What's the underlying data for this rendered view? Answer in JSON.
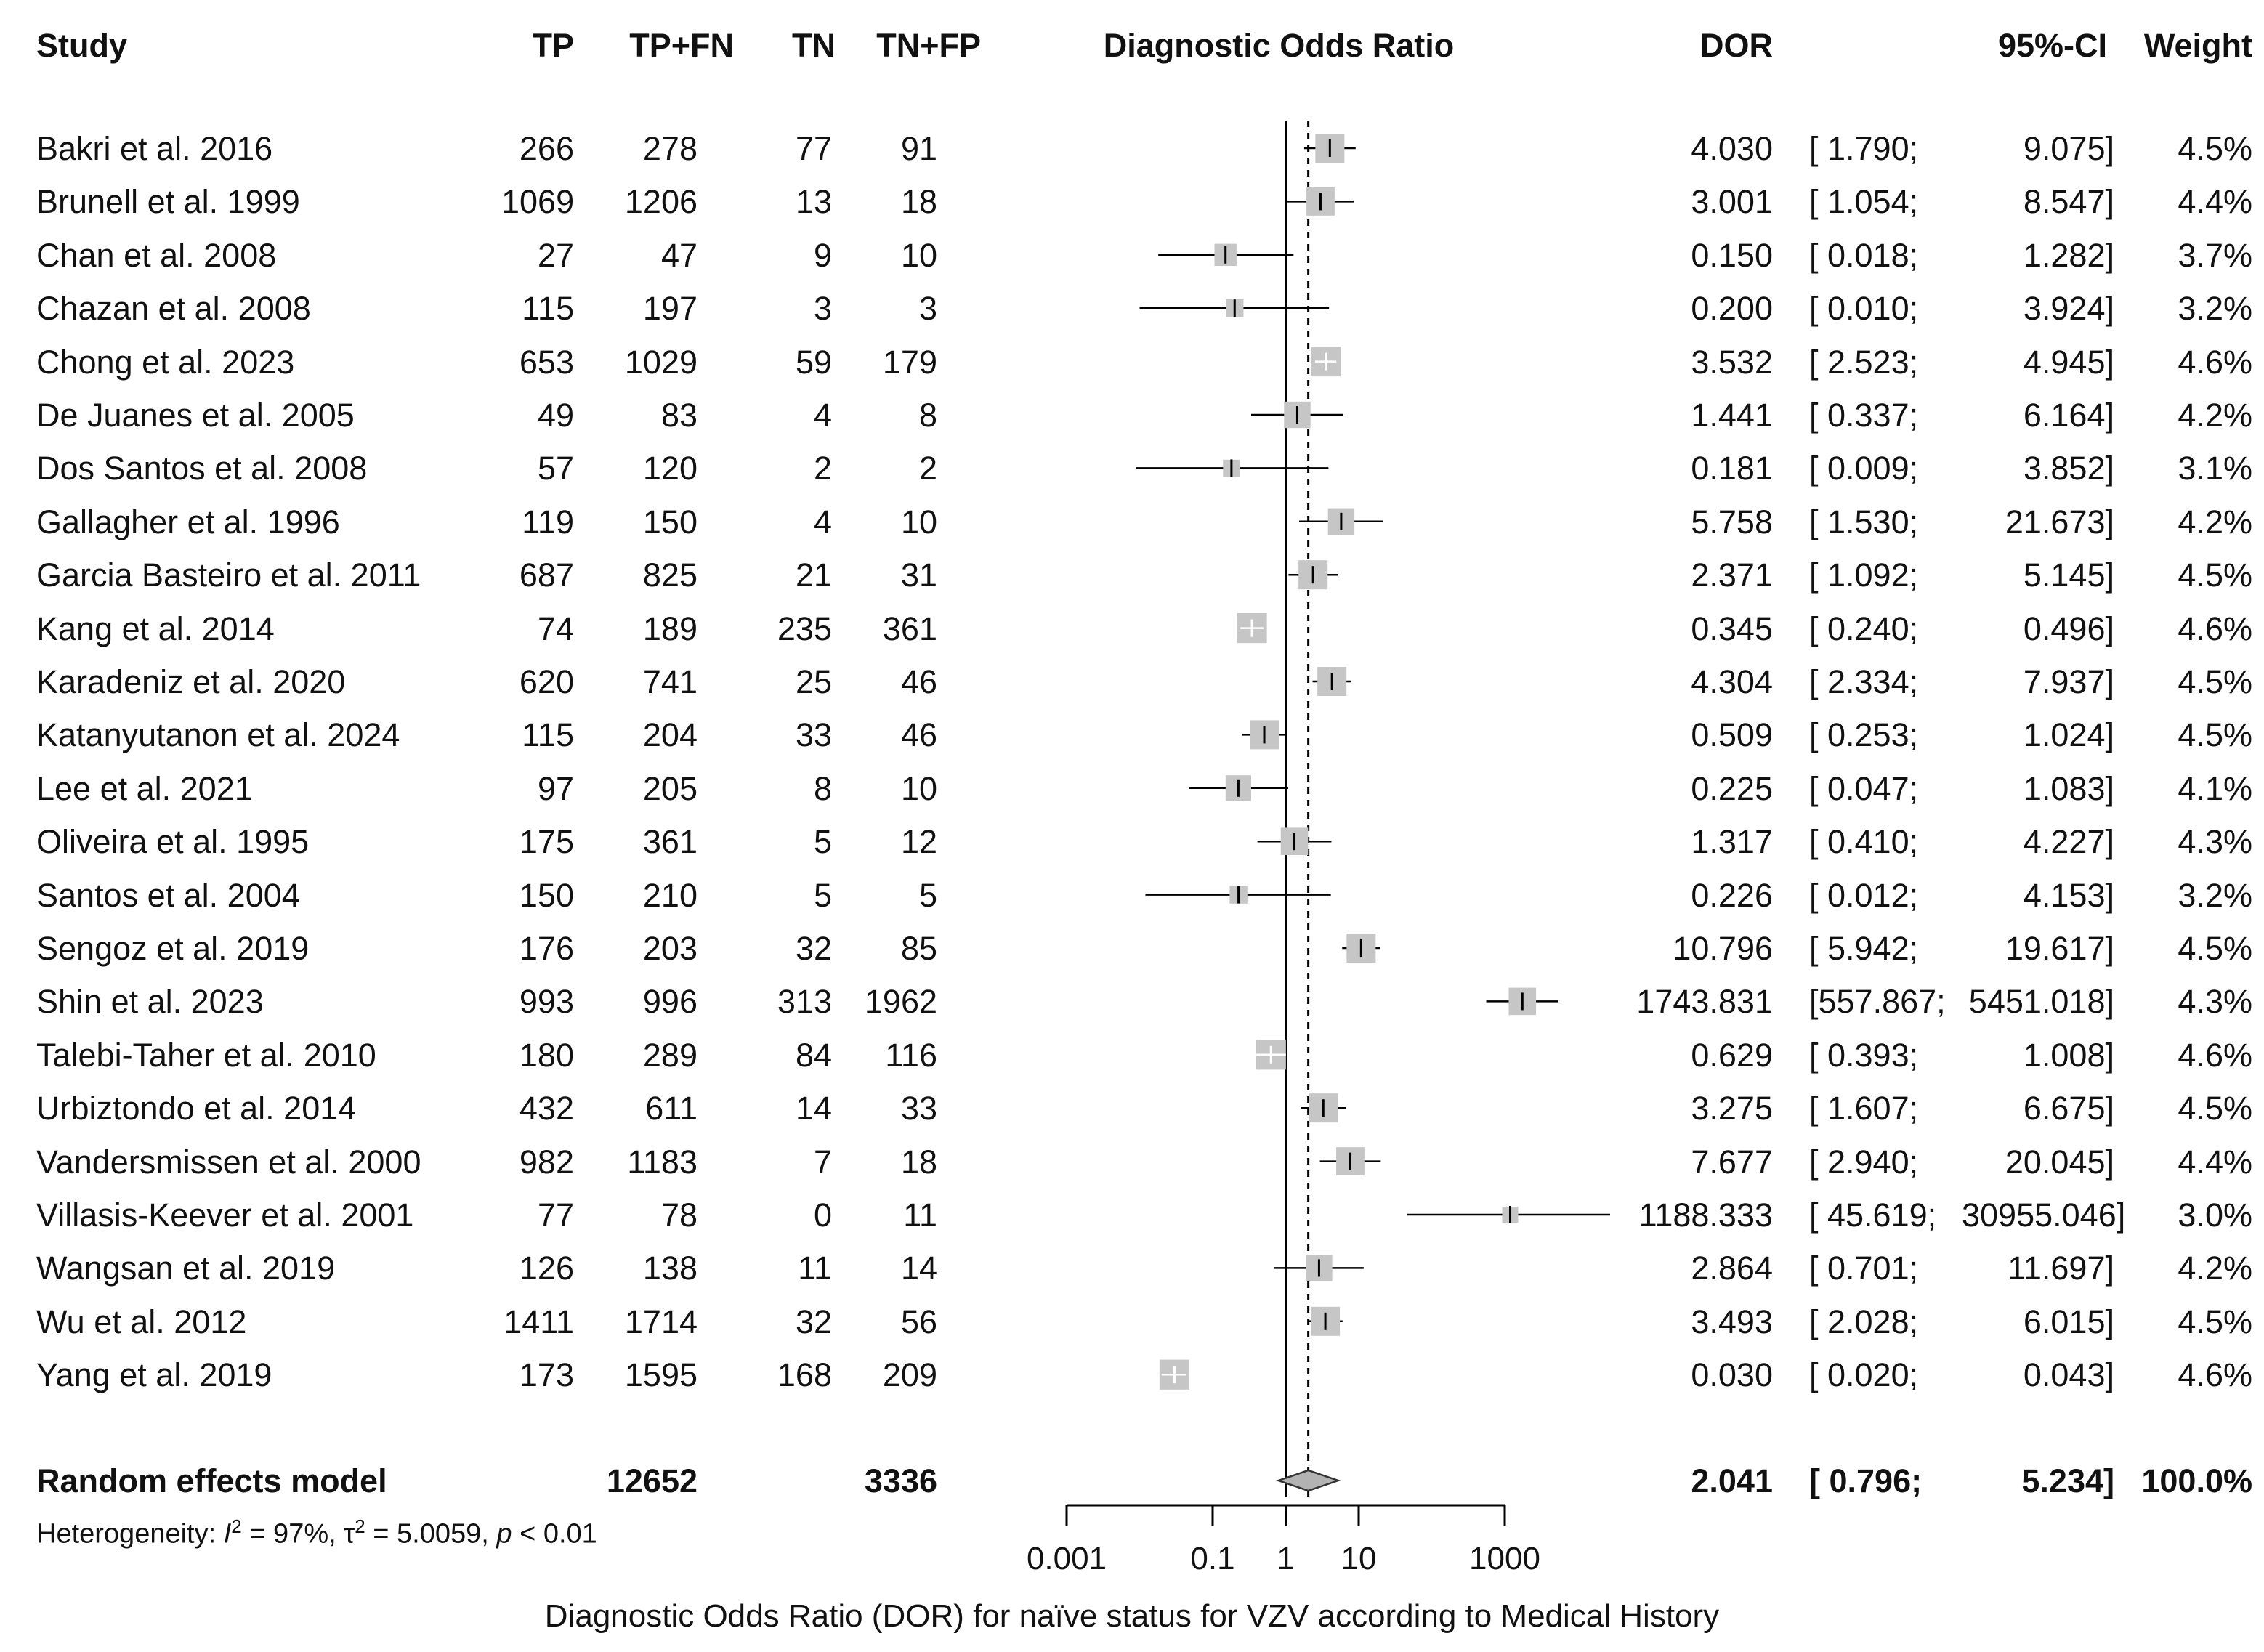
{
  "headers": {
    "study": "Study",
    "tp": "TP",
    "tpfn": "TP+FN",
    "tn": "TN",
    "tnfp": "TN+FP",
    "plot": "Diagnostic Odds Ratio",
    "dor": "DOR",
    "ci": "95%-CI",
    "weight": "Weight"
  },
  "chart_data": {
    "type": "forest",
    "title": "Diagnostic Odds Ratio",
    "xlabel": "Diagnostic Odds Ratio (DOR) for naïve status for VZV according to Medical History",
    "xscale": "log10",
    "xlim": [
      0.001,
      1000
    ],
    "xticks": [
      0.001,
      0.1,
      1,
      10,
      1000
    ],
    "xtick_labels": [
      "0.001",
      "0.1",
      "1",
      "10",
      "1000"
    ],
    "reference_line": 1,
    "pooled_line": 2.041,
    "studies": [
      {
        "study": "Bakri et al. 2016",
        "tp": "266",
        "tpfn": "278",
        "tn": "77",
        "tnfp": "91",
        "dor": 4.03,
        "lo": 1.79,
        "hi": 9.075,
        "dor_text": "4.030",
        "ci_lo_text": "[ 1.790;",
        "ci_hi_text": "9.075]",
        "weight_text": "4.5%",
        "weight": 4.5
      },
      {
        "study": "Brunell et al. 1999",
        "tp": "1069",
        "tpfn": "1206",
        "tn": "13",
        "tnfp": "18",
        "dor": 3.001,
        "lo": 1.054,
        "hi": 8.547,
        "dor_text": "3.001",
        "ci_lo_text": "[ 1.054;",
        "ci_hi_text": "8.547]",
        "weight_text": "4.4%",
        "weight": 4.4
      },
      {
        "study": "Chan et al. 2008",
        "tp": "27",
        "tpfn": "47",
        "tn": "9",
        "tnfp": "10",
        "dor": 0.15,
        "lo": 0.018,
        "hi": 1.282,
        "dor_text": "0.150",
        "ci_lo_text": "[ 0.018;",
        "ci_hi_text": "1.282]",
        "weight_text": "3.7%",
        "weight": 3.7
      },
      {
        "study": "Chazan et al. 2008",
        "tp": "115",
        "tpfn": "197",
        "tn": "3",
        "tnfp": "3",
        "dor": 0.2,
        "lo": 0.01,
        "hi": 3.924,
        "dor_text": "0.200",
        "ci_lo_text": "[ 0.010;",
        "ci_hi_text": "3.924]",
        "weight_text": "3.2%",
        "weight": 3.2
      },
      {
        "study": "Chong et al. 2023",
        "tp": "653",
        "tpfn": "1029",
        "tn": "59",
        "tnfp": "179",
        "dor": 3.532,
        "lo": 2.523,
        "hi": 4.945,
        "dor_text": "3.532",
        "ci_lo_text": "[ 2.523;",
        "ci_hi_text": "4.945]",
        "weight_text": "4.6%",
        "weight": 4.6
      },
      {
        "study": "De Juanes et al. 2005",
        "tp": "49",
        "tpfn": "83",
        "tn": "4",
        "tnfp": "8",
        "dor": 1.441,
        "lo": 0.337,
        "hi": 6.164,
        "dor_text": "1.441",
        "ci_lo_text": "[ 0.337;",
        "ci_hi_text": "6.164]",
        "weight_text": "4.2%",
        "weight": 4.2
      },
      {
        "study": "Dos Santos et al. 2008",
        "tp": "57",
        "tpfn": "120",
        "tn": "2",
        "tnfp": "2",
        "dor": 0.181,
        "lo": 0.009,
        "hi": 3.852,
        "dor_text": "0.181",
        "ci_lo_text": "[ 0.009;",
        "ci_hi_text": "3.852]",
        "weight_text": "3.1%",
        "weight": 3.1
      },
      {
        "study": "Gallagher et al. 1996",
        "tp": "119",
        "tpfn": "150",
        "tn": "4",
        "tnfp": "10",
        "dor": 5.758,
        "lo": 1.53,
        "hi": 21.673,
        "dor_text": "5.758",
        "ci_lo_text": "[ 1.530;",
        "ci_hi_text": "21.673]",
        "weight_text": "4.2%",
        "weight": 4.2
      },
      {
        "study": "Garcia Basteiro et al. 2011",
        "tp": "687",
        "tpfn": "825",
        "tn": "21",
        "tnfp": "31",
        "dor": 2.371,
        "lo": 1.092,
        "hi": 5.145,
        "dor_text": "2.371",
        "ci_lo_text": "[ 1.092;",
        "ci_hi_text": "5.145]",
        "weight_text": "4.5%",
        "weight": 4.5
      },
      {
        "study": "Kang et al. 2014",
        "tp": "74",
        "tpfn": "189",
        "tn": "235",
        "tnfp": "361",
        "dor": 0.345,
        "lo": 0.24,
        "hi": 0.496,
        "dor_text": "0.345",
        "ci_lo_text": "[ 0.240;",
        "ci_hi_text": "0.496]",
        "weight_text": "4.6%",
        "weight": 4.6
      },
      {
        "study": "Karadeniz et al. 2020",
        "tp": "620",
        "tpfn": "741",
        "tn": "25",
        "tnfp": "46",
        "dor": 4.304,
        "lo": 2.334,
        "hi": 7.937,
        "dor_text": "4.304",
        "ci_lo_text": "[ 2.334;",
        "ci_hi_text": "7.937]",
        "weight_text": "4.5%",
        "weight": 4.5
      },
      {
        "study": "Katanyutanon et al. 2024",
        "tp": "115",
        "tpfn": "204",
        "tn": "33",
        "tnfp": "46",
        "dor": 0.509,
        "lo": 0.253,
        "hi": 1.024,
        "dor_text": "0.509",
        "ci_lo_text": "[ 0.253;",
        "ci_hi_text": "1.024]",
        "weight_text": "4.5%",
        "weight": 4.5
      },
      {
        "study": "Lee et al. 2021",
        "tp": "97",
        "tpfn": "205",
        "tn": "8",
        "tnfp": "10",
        "dor": 0.225,
        "lo": 0.047,
        "hi": 1.083,
        "dor_text": "0.225",
        "ci_lo_text": "[ 0.047;",
        "ci_hi_text": "1.083]",
        "weight_text": "4.1%",
        "weight": 4.1
      },
      {
        "study": "Oliveira et al. 1995",
        "tp": "175",
        "tpfn": "361",
        "tn": "5",
        "tnfp": "12",
        "dor": 1.317,
        "lo": 0.41,
        "hi": 4.227,
        "dor_text": "1.317",
        "ci_lo_text": "[ 0.410;",
        "ci_hi_text": "4.227]",
        "weight_text": "4.3%",
        "weight": 4.3
      },
      {
        "study": "Santos et al. 2004",
        "tp": "150",
        "tpfn": "210",
        "tn": "5",
        "tnfp": "5",
        "dor": 0.226,
        "lo": 0.012,
        "hi": 4.153,
        "dor_text": "0.226",
        "ci_lo_text": "[ 0.012;",
        "ci_hi_text": "4.153]",
        "weight_text": "3.2%",
        "weight": 3.2
      },
      {
        "study": "Sengoz et al. 2019",
        "tp": "176",
        "tpfn": "203",
        "tn": "32",
        "tnfp": "85",
        "dor": 10.796,
        "lo": 5.942,
        "hi": 19.617,
        "dor_text": "10.796",
        "ci_lo_text": "[ 5.942;",
        "ci_hi_text": "19.617]",
        "weight_text": "4.5%",
        "weight": 4.5
      },
      {
        "study": "Shin et al. 2023",
        "tp": "993",
        "tpfn": "996",
        "tn": "313",
        "tnfp": "1962",
        "dor": 1743.831,
        "lo": 557.867,
        "hi": 5451.018,
        "dor_text": "1743.831",
        "ci_lo_text": "[557.867;",
        "ci_hi_text": "5451.018]",
        "weight_text": "4.3%",
        "weight": 4.3
      },
      {
        "study": "Talebi-Taher et al. 2010",
        "tp": "180",
        "tpfn": "289",
        "tn": "84",
        "tnfp": "116",
        "dor": 0.629,
        "lo": 0.393,
        "hi": 1.008,
        "dor_text": "0.629",
        "ci_lo_text": "[ 0.393;",
        "ci_hi_text": "1.008]",
        "weight_text": "4.6%",
        "weight": 4.6
      },
      {
        "study": "Urbiztondo et al. 2014",
        "tp": "432",
        "tpfn": "611",
        "tn": "14",
        "tnfp": "33",
        "dor": 3.275,
        "lo": 1.607,
        "hi": 6.675,
        "dor_text": "3.275",
        "ci_lo_text": "[ 1.607;",
        "ci_hi_text": "6.675]",
        "weight_text": "4.5%",
        "weight": 4.5
      },
      {
        "study": "Vandersmissen et al. 2000",
        "tp": "982",
        "tpfn": "1183",
        "tn": "7",
        "tnfp": "18",
        "dor": 7.677,
        "lo": 2.94,
        "hi": 20.045,
        "dor_text": "7.677",
        "ci_lo_text": "[ 2.940;",
        "ci_hi_text": "20.045]",
        "weight_text": "4.4%",
        "weight": 4.4
      },
      {
        "study": "Villasis-Keever et al. 2001",
        "tp": "77",
        "tpfn": "78",
        "tn": "0",
        "tnfp": "11",
        "dor": 1188.333,
        "lo": 45.619,
        "hi": 30955.046,
        "dor_text": "1188.333",
        "ci_lo_text": "[ 45.619;",
        "ci_hi_text": "30955.046]",
        "weight_text": "3.0%",
        "weight": 3.0
      },
      {
        "study": "Wangsan et al. 2019",
        "tp": "126",
        "tpfn": "138",
        "tn": "11",
        "tnfp": "14",
        "dor": 2.864,
        "lo": 0.701,
        "hi": 11.697,
        "dor_text": "2.864",
        "ci_lo_text": "[ 0.701;",
        "ci_hi_text": "11.697]",
        "weight_text": "4.2%",
        "weight": 4.2
      },
      {
        "study": "Wu et al. 2012",
        "tp": "1411",
        "tpfn": "1714",
        "tn": "32",
        "tnfp": "56",
        "dor": 3.493,
        "lo": 2.028,
        "hi": 6.015,
        "dor_text": "3.493",
        "ci_lo_text": "[ 2.028;",
        "ci_hi_text": "6.015]",
        "weight_text": "4.5%",
        "weight": 4.5
      },
      {
        "study": "Yang et al. 2019",
        "tp": "173",
        "tpfn": "1595",
        "tn": "168",
        "tnfp": "209",
        "dor": 0.03,
        "lo": 0.02,
        "hi": 0.043,
        "dor_text": "0.030",
        "ci_lo_text": "[ 0.020;",
        "ci_hi_text": "0.043]",
        "weight_text": "4.6%",
        "weight": 4.6
      }
    ],
    "pooled": {
      "label": "Random effects model",
      "tpfn": "12652",
      "tnfp": "3336",
      "dor": 2.041,
      "lo": 0.796,
      "hi": 5.234,
      "dor_text": "2.041",
      "ci_lo_text": "[ 0.796;",
      "ci_hi_text": "5.234]",
      "weight_text": "100.0%"
    },
    "heterogeneity": {
      "prefix": "Heterogeneity: ",
      "i2_symbol": "I",
      "i2_value": " = 97%, ",
      "tau_symbol": "τ",
      "tau_value": " = 5.0059, ",
      "p_symbol": "p",
      "p_value": " < 0.01",
      "sup": "2"
    }
  }
}
